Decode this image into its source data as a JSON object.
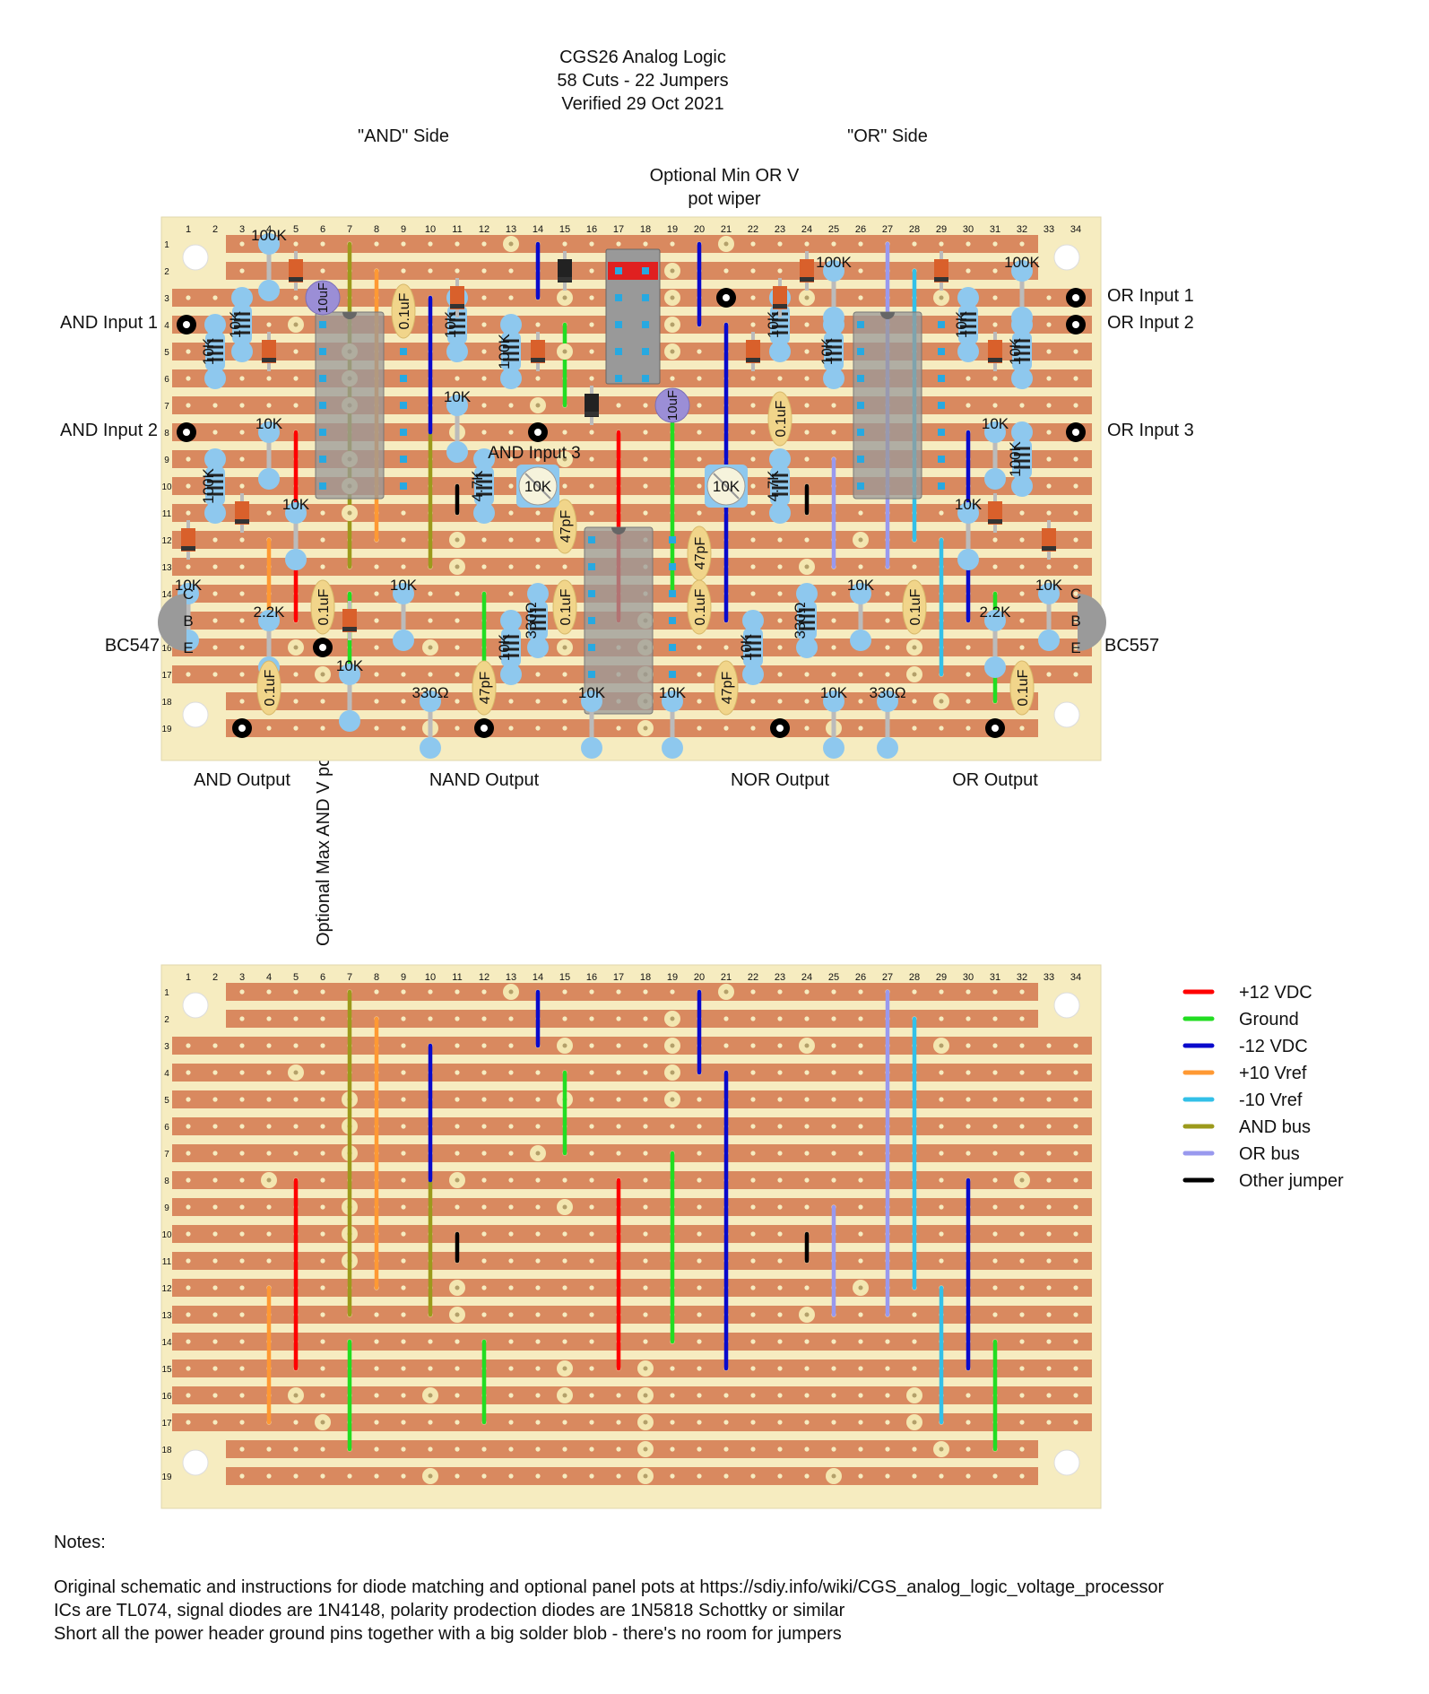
{
  "header": {
    "title_lines": [
      "CGS26 Analog Logic",
      "58 Cuts - 22 Jumpers",
      "Verified 29 Oct 2021"
    ],
    "and_side": "\"AND\" Side",
    "or_side": "\"OR\" Side",
    "optional_min_lines": [
      "Optional Min OR V",
      "pot wiper"
    ],
    "optional_max": "Optional Max AND V pot wiper"
  },
  "labels": {
    "inputs_left": [
      "AND Input 1",
      "AND Input 2"
    ],
    "inputs_right": [
      "OR Input 1",
      "OR Input 2",
      "OR Input 3"
    ],
    "and_input_3": "AND Input 3",
    "outputs": [
      "AND Output",
      "NAND Output",
      "NOR Output",
      "OR Output"
    ],
    "transistors": [
      "BC547",
      "BC557"
    ],
    "cbe": [
      "C",
      "B",
      "E"
    ]
  },
  "board": {
    "columns": [
      "1",
      "2",
      "3",
      "4",
      "5",
      "6",
      "7",
      "8",
      "9",
      "10",
      "11",
      "12",
      "13",
      "14",
      "15",
      "16",
      "17",
      "18",
      "19",
      "20",
      "21",
      "22",
      "23",
      "24",
      "25",
      "26",
      "27",
      "28",
      "29",
      "30",
      "31",
      "32",
      "33",
      "34"
    ],
    "rows": [
      "1",
      "2",
      "3",
      "4",
      "5",
      "6",
      "7",
      "8",
      "9",
      "10",
      "11",
      "12",
      "13",
      "14",
      "15",
      "16",
      "17",
      "18",
      "19"
    ],
    "colors": {
      "board": "#f6ecc0",
      "strip": "#d9895f",
      "hole": "#f6ecc0",
      "pad": "#f3e6b0"
    }
  },
  "components": {
    "resistors": [
      {
        "label": "100K",
        "c": 4,
        "r": 1,
        "vert": false
      },
      {
        "label": "10K",
        "c": 3,
        "r": 4,
        "vert": true
      },
      {
        "label": "10K",
        "c": 2,
        "r": 5,
        "vert": true
      },
      {
        "label": "10K",
        "c": 4,
        "r": 8,
        "vert": false
      },
      {
        "label": "100K",
        "c": 2,
        "r": 10,
        "vert": true
      },
      {
        "label": "10K",
        "c": 5,
        "r": 11,
        "vert": false
      },
      {
        "label": "10K",
        "c": 1,
        "r": 14,
        "vert": false
      },
      {
        "label": "2.2K",
        "c": 4,
        "r": 15,
        "vert": false
      },
      {
        "label": "10K",
        "c": 9,
        "r": 14,
        "vert": false
      },
      {
        "label": "10K",
        "c": 7,
        "r": 17,
        "vert": false
      },
      {
        "label": "330Ω",
        "c": 10,
        "r": 18,
        "vert": false
      },
      {
        "label": "10K",
        "c": 11,
        "r": 4,
        "vert": true
      },
      {
        "label": "100K",
        "c": 13,
        "r": 5,
        "vert": true
      },
      {
        "label": "10K",
        "c": 11,
        "r": 7,
        "vert": false
      },
      {
        "label": "4.7K",
        "c": 12,
        "r": 10,
        "vert": true
      },
      {
        "label": "10K",
        "c": 13,
        "r": 16,
        "vert": true
      },
      {
        "label": "330Ω",
        "c": 14,
        "r": 15,
        "vert": true
      },
      {
        "label": "10K",
        "c": 16,
        "r": 18,
        "vert": false
      },
      {
        "label": "10K",
        "c": 19,
        "r": 18,
        "vert": false
      },
      {
        "label": "4.7K",
        "c": 23,
        "r": 10,
        "vert": true
      },
      {
        "label": "10K",
        "c": 23,
        "r": 4,
        "vert": true
      },
      {
        "label": "10K",
        "c": 25,
        "r": 5,
        "vert": true
      },
      {
        "label": "100K",
        "c": 25,
        "r": 2,
        "vert": false
      },
      {
        "label": "10K",
        "c": 22,
        "r": 16,
        "vert": true
      },
      {
        "label": "330Ω",
        "c": 24,
        "r": 15,
        "vert": true
      },
      {
        "label": "10K",
        "c": 25,
        "r": 18,
        "vert": false
      },
      {
        "label": "330Ω",
        "c": 27,
        "r": 18,
        "vert": false
      },
      {
        "label": "10K",
        "c": 26,
        "r": 14,
        "vert": false
      },
      {
        "label": "10K",
        "c": 30,
        "r": 4,
        "vert": true
      },
      {
        "label": "100K",
        "c": 32,
        "r": 2,
        "vert": false
      },
      {
        "label": "10K",
        "c": 32,
        "r": 5,
        "vert": true
      },
      {
        "label": "10K",
        "c": 31,
        "r": 8,
        "vert": false
      },
      {
        "label": "100K",
        "c": 32,
        "r": 9,
        "vert": true
      },
      {
        "label": "10K",
        "c": 30,
        "r": 11,
        "vert": false
      },
      {
        "label": "10K",
        "c": 33,
        "r": 14,
        "vert": false
      },
      {
        "label": "2.2K",
        "c": 31,
        "r": 15,
        "vert": false
      }
    ],
    "capacitors": [
      {
        "label": "10uF",
        "c": 6,
        "r": 3,
        "elec": true
      },
      {
        "label": "0.1uF",
        "c": 9,
        "r": 3,
        "elec": false
      },
      {
        "label": "0.1uF",
        "c": 6,
        "r": 14,
        "elec": false
      },
      {
        "label": "0.1uF",
        "c": 4,
        "r": 17,
        "elec": false
      },
      {
        "label": "47pF",
        "c": 15,
        "r": 11,
        "elec": false
      },
      {
        "label": "0.1uF",
        "c": 15,
        "r": 14,
        "elec": false
      },
      {
        "label": "47pF",
        "c": 12,
        "r": 17,
        "elec": false
      },
      {
        "label": "10uF",
        "c": 19,
        "r": 7,
        "elec": true
      },
      {
        "label": "0.1uF",
        "c": 23,
        "r": 7,
        "elec": false
      },
      {
        "label": "47pF",
        "c": 20,
        "r": 12,
        "elec": false
      },
      {
        "label": "0.1uF",
        "c": 20,
        "r": 14,
        "elec": false
      },
      {
        "label": "47pF",
        "c": 21,
        "r": 17,
        "elec": false
      },
      {
        "label": "0.1uF",
        "c": 28,
        "r": 14,
        "elec": false
      },
      {
        "label": "0.1uF",
        "c": 32,
        "r": 17,
        "elec": false
      }
    ],
    "trimmers": [
      {
        "label": "10K",
        "c": 14,
        "r": 10
      },
      {
        "label": "10K",
        "c": 21,
        "r": 10
      }
    ]
  },
  "legend": [
    {
      "label": "+12 VDC",
      "color": "#ff0000"
    },
    {
      "label": "Ground",
      "color": "#22dd22"
    },
    {
      "label": "-12 VDC",
      "color": "#0a0acc"
    },
    {
      "label": "+10 Vref",
      "color": "#ff9933"
    },
    {
      "label": "-10 Vref",
      "color": "#33c0e8"
    },
    {
      "label": "AND bus",
      "color": "#9c9a1c"
    },
    {
      "label": "OR bus",
      "color": "#9999ee"
    },
    {
      "label": "Other jumper",
      "color": "#000000"
    }
  ],
  "notes": {
    "heading": "Notes:",
    "lines": [
      "Original schematic and instructions for diode matching and optional panel pots at https://sdiy.info/wiki/CGS_analog_logic_voltage_processor",
      "ICs are TL074, signal diodes are 1N4148, polarity prodection diodes are 1N5818 Schottky or similar",
      "Short all the power header ground pins together with a big solder blob - there's no room for jumpers"
    ]
  }
}
